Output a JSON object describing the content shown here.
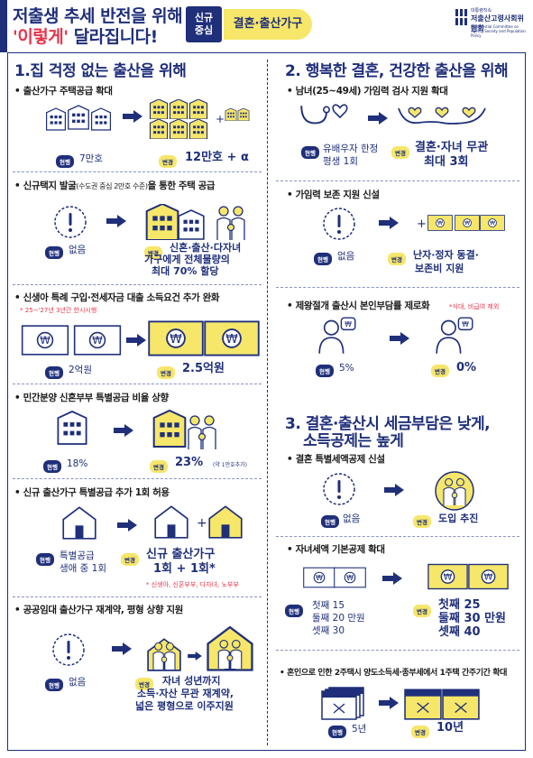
{
  "header": {
    "title_line1": "저출생 추세 반전을 위해",
    "title_line2_quote": "'이렇게'",
    "title_line2_rest": " 달라집니다!",
    "tag_line1": "신규",
    "tag_line2": "중심",
    "pill": "결혼·출산가구",
    "logo_top": "대통령직속",
    "logo_name": "저출산고령사회위원회",
    "logo_en": "Presidential Committee on Ageing Society and Population Policy"
  },
  "badges": {
    "current": "현행",
    "change": "변경"
  },
  "section1": {
    "title": "1.집 걱정 없는 출산을 위해",
    "items": [
      {
        "title": "• 출산가구 주택공급 확대",
        "current": "7만호",
        "changed": "12만호 + α"
      },
      {
        "title": "• 신규택지 발굴",
        "title_small": "(수도권 중심 2만호 수준)",
        "title_rest": "을 통한 주택 공급",
        "current": "없음",
        "changed_l1": "신혼·출산·다자녀",
        "changed_l2": "가구에게 전체물량의",
        "changed_l3": "최대 70% 할당"
      },
      {
        "title": "• 신생아 특례 구입·전세자금 대출 소득요건 추가 완화",
        "note": "* 25~'27년 3년간 한시시행",
        "current": "2억원",
        "changed": "2.5억원"
      },
      {
        "title": "• 민간분양 신혼부부 특별공급 비율 상향",
        "current": "18%",
        "changed": "23%",
        "changed_small": "(약 1만호추가)"
      },
      {
        "title": "• 신규 출산가구 특별공급 추가 1회 허용",
        "current_l1": "특별공급",
        "current_l2": "생애 중 1회",
        "changed_l1": "신규 출산가구",
        "changed_l2": "1회 + 1회*",
        "note": "* 신생아, 신혼부부, 다자녀, 노부부"
      },
      {
        "title": "• 공공임대 출산가구 재계약, 평형 상향 지원",
        "current": "없음",
        "changed_l1": "자녀 성년까지",
        "changed_l2": "소득·자산 무관 재계약,",
        "changed_l3": "넓은 평형으로 이주지원"
      }
    ]
  },
  "section2": {
    "title": "2. 행복한 결혼, 건강한 출산을 위해",
    "items": [
      {
        "title": "• 남녀(25~49세) 가임력 검사 지원 확대",
        "current_l1": "유배우자 한정",
        "current_l2": "평생 1회",
        "changed_l1": "결혼·자녀 무관",
        "changed_l2": "최대 3회"
      },
      {
        "title": "• 가임력 보존 지원 신설",
        "current": "없음",
        "changed_l1": "난자·정자 동결·",
        "changed_l2": "보존비 지원"
      },
      {
        "title": "• 제왕절개 출산시 본인부담률 제로화",
        "note": "*식대, 비급여 제외",
        "current": "5%",
        "changed": "0%"
      }
    ]
  },
  "section3": {
    "title_l1": "3. 결혼·출산시 세금부담은 낮게,",
    "title_l2": "소득공제는 높게",
    "items": [
      {
        "title": "• 결혼 특별세액공제 신설",
        "current": "없음",
        "changed": "도입 추진"
      },
      {
        "title": "• 자녀세액 기본공제 확대",
        "current_l1": "첫째 15",
        "current_l2": "둘째 20 만원",
        "current_l3": "셋째 30",
        "changed_l1": "첫째 25",
        "changed_l2": "둘째 30 만원",
        "changed_l3": "셋째 40"
      },
      {
        "title": "• 혼인으로 인한 2주택시 양도소득세·종부세에서 1주택 간주기간 확대",
        "current": "5년",
        "changed": "10년"
      }
    ]
  },
  "colors": {
    "navy": "#1f2f7a",
    "yellow": "#f6e66a",
    "red": "#e8344a"
  }
}
